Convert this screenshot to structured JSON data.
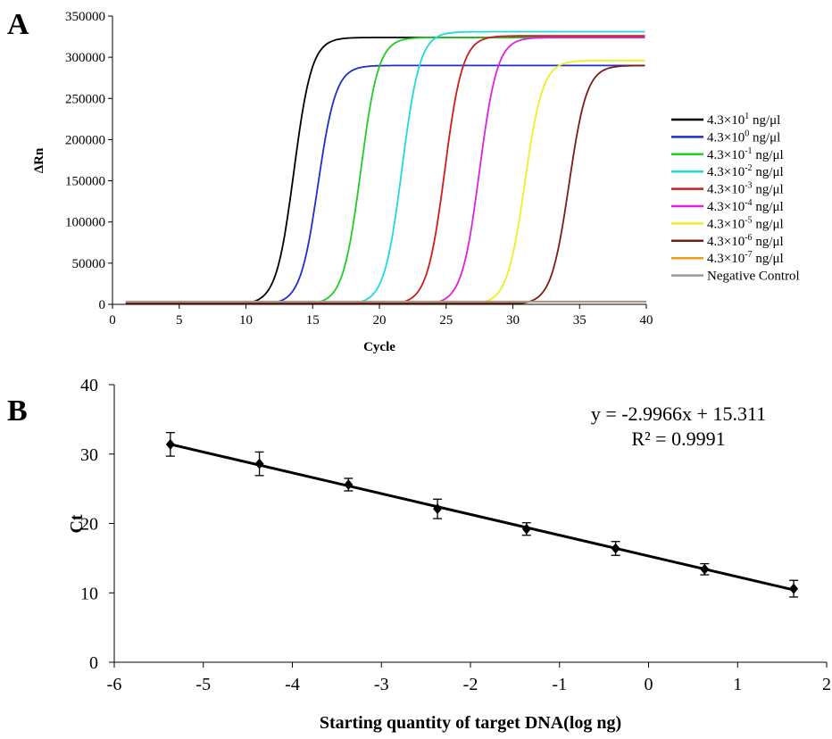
{
  "chart_data": [
    {
      "panel": "A",
      "type": "line",
      "xlabel": "Cycle",
      "ylabel": "ΔRn",
      "xlim": [
        0,
        40
      ],
      "ylim": [
        0,
        350000
      ],
      "xticks": [
        "0",
        "5",
        "10",
        "15",
        "20",
        "25",
        "30",
        "35",
        "40"
      ],
      "yticks": [
        "0",
        "50000",
        "100000",
        "150000",
        "200000",
        "250000",
        "300000",
        "350000"
      ],
      "grid": false,
      "legend_position": "right",
      "series": [
        {
          "name": "4.3×10¹ ng/μl",
          "base": "4.3×10",
          "exp": "1",
          "unit": " ng/μl",
          "color": "#000000",
          "threshold_cycle": 12.2,
          "plateau": 324000
        },
        {
          "name": "4.3×10⁰ ng/μl",
          "base": "4.3×10",
          "exp": "0",
          "unit": " ng/μl",
          "color": "#1f2fc8",
          "threshold_cycle": 14.0,
          "plateau": 290000
        },
        {
          "name": "4.3×10⁻¹ ng/μl",
          "base": "4.3×10",
          "exp": "-1",
          "unit": " ng/μl",
          "color": "#22cc22",
          "threshold_cycle": 17.2,
          "plateau": 324000
        },
        {
          "name": "4.3×10⁻² ng/μl",
          "base": "4.3×10",
          "exp": "-2",
          "unit": " ng/μl",
          "color": "#22d8d8",
          "threshold_cycle": 20.3,
          "plateau": 331000
        },
        {
          "name": "4.3×10⁻³ ng/μl",
          "base": "4.3×10",
          "exp": "-3",
          "unit": " ng/μl",
          "color": "#cc1c1c",
          "threshold_cycle": 23.5,
          "plateau": 326000
        },
        {
          "name": "4.3×10⁻⁴ ng/μl",
          "base": "4.3×10",
          "exp": "-4",
          "unit": " ng/μl",
          "color": "#dd22dd",
          "threshold_cycle": 26.1,
          "plateau": 324000
        },
        {
          "name": "4.3×10⁻⁵ ng/μl",
          "base": "4.3×10",
          "exp": "-5",
          "unit": " ng/μl",
          "color": "#eeee22",
          "threshold_cycle": 29.5,
          "plateau": 296000
        },
        {
          "name": "4.3×10⁻⁶ ng/μl",
          "base": "4.3×10",
          "exp": "-6",
          "unit": " ng/μl",
          "color": "#7a1e14",
          "threshold_cycle": 32.8,
          "plateau": 290000
        },
        {
          "name": "4.3×10⁻⁷ ng/μl",
          "base": "4.3×10",
          "exp": "-7",
          "unit": " ng/μl",
          "color": "#f39a1c",
          "threshold_cycle": null,
          "plateau": 3000
        },
        {
          "name": "Negative Control",
          "base": "Negative Control",
          "exp": "",
          "unit": "",
          "color": "#999999",
          "threshold_cycle": null,
          "plateau": 3500
        }
      ]
    },
    {
      "panel": "B",
      "type": "scatter",
      "xlabel": "Starting quantity of target DNA(log ng)",
      "ylabel": "Ct",
      "xlim": [
        -6,
        2
      ],
      "ylim": [
        0,
        40
      ],
      "xticks": [
        "-6",
        "-5",
        "-4",
        "-3",
        "-2",
        "-1",
        "0",
        "1",
        "2"
      ],
      "yticks": [
        "0",
        "10",
        "20",
        "30",
        "40"
      ],
      "grid": false,
      "points": [
        {
          "x": -5.37,
          "y": 31.4,
          "err": 1.7
        },
        {
          "x": -4.37,
          "y": 28.6,
          "err": 1.7
        },
        {
          "x": -3.37,
          "y": 25.6,
          "err": 0.9
        },
        {
          "x": -2.37,
          "y": 22.1,
          "err": 1.4
        },
        {
          "x": -1.37,
          "y": 19.2,
          "err": 0.9
        },
        {
          "x": -0.37,
          "y": 16.4,
          "err": 1.0
        },
        {
          "x": 0.63,
          "y": 13.4,
          "err": 0.8
        },
        {
          "x": 1.63,
          "y": 10.6,
          "err": 1.2
        }
      ],
      "trendline": {
        "slope": -2.9966,
        "intercept": 15.311
      },
      "equation": "y = -2.9966x + 15.311",
      "r_squared": "R² = 0.9991",
      "color": "#000000"
    }
  ]
}
